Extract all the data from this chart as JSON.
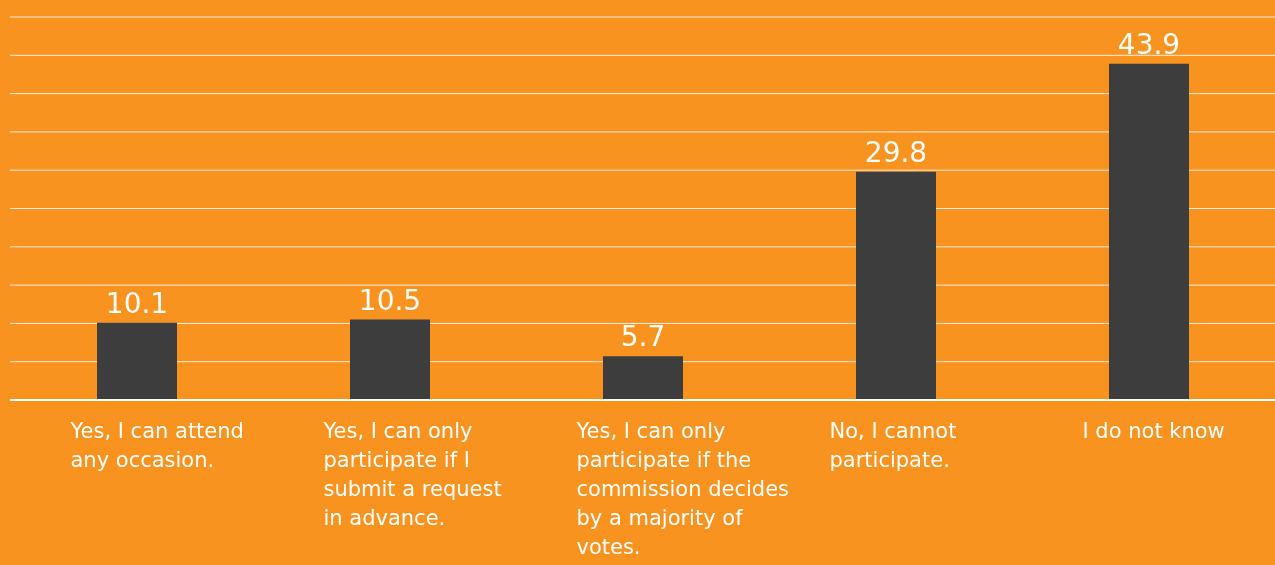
{
  "chart_data": {
    "type": "bar",
    "categories": [
      "Yes, I can attend any occasion.",
      "Yes, I can only participate if I submit a request in advance.",
      "Yes, I can only participate if the commission decides by a majority of votes.",
      "No, I cannot participate.",
      "I do not know"
    ],
    "values": [
      10.1,
      10.5,
      5.7,
      29.8,
      43.9
    ],
    "color": "#3d3d3d",
    "ylim": [
      0,
      50
    ],
    "yticks": [
      {
        "value": 0,
        "label": null
      },
      {
        "value": 5,
        "label": null
      },
      {
        "value": 10,
        "label": null
      },
      {
        "value": 15,
        "label": null
      },
      {
        "value": 20,
        "label": null
      },
      {
        "value": 25,
        "label": null
      },
      {
        "value": 30,
        "label": null
      },
      {
        "value": 35,
        "label": null
      },
      {
        "value": 40,
        "label": null
      },
      {
        "value": 45,
        "label": null
      },
      {
        "value": 50,
        "label": null
      }
    ],
    "tick_labels": "x",
    "grid": "y",
    "data_labels": true
  }
}
